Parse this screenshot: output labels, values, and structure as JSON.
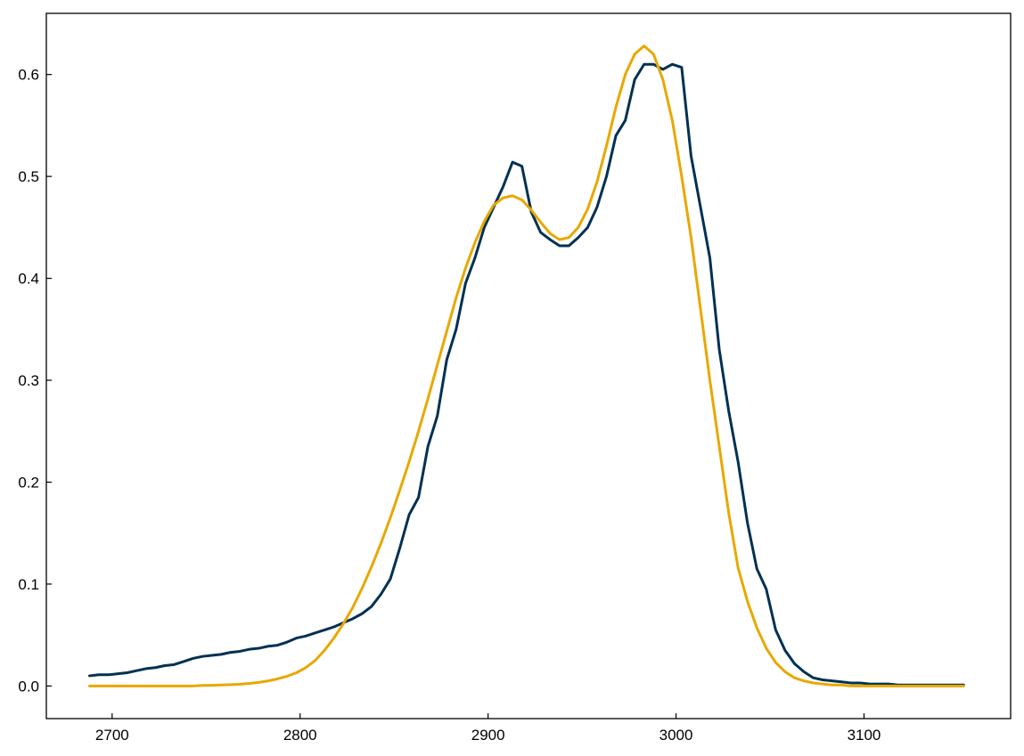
{
  "chart_data": {
    "type": "line",
    "title": "",
    "xlabel": "",
    "ylabel": "",
    "xlim": [
      2665,
      3178
    ],
    "ylim": [
      -0.032,
      0.66
    ],
    "x_ticks": [
      2700,
      2800,
      2900,
      3000,
      3100
    ],
    "x_tick_labels": [
      "2700",
      "2800",
      "2900",
      "3000",
      "3100"
    ],
    "y_ticks": [
      0.0,
      0.1,
      0.2,
      0.3,
      0.4,
      0.5,
      0.6
    ],
    "y_tick_labels": [
      "0.0",
      "0.1",
      "0.2",
      "0.3",
      "0.4",
      "0.5",
      "0.6"
    ],
    "grid": false,
    "legend": "none",
    "series": [
      {
        "color": "#003153",
        "x": [
          2688,
          2693,
          2698,
          2703,
          2708,
          2713,
          2718,
          2723,
          2728,
          2733,
          2738,
          2743,
          2748,
          2753,
          2758,
          2763,
          2768,
          2773,
          2778,
          2783,
          2788,
          2793,
          2798,
          2803,
          2808,
          2813,
          2818,
          2823,
          2828,
          2833,
          2838,
          2843,
          2848,
          2853,
          2858,
          2863,
          2868,
          2873,
          2878,
          2883,
          2888,
          2893,
          2898,
          2903,
          2908,
          2913,
          2918,
          2923,
          2928,
          2933,
          2938,
          2943,
          2948,
          2953,
          2958,
          2963,
          2968,
          2973,
          2978,
          2983,
          2988,
          2993,
          2998,
          3003,
          3008,
          3013,
          3018,
          3023,
          3028,
          3033,
          3038,
          3043,
          3048,
          3053,
          3058,
          3063,
          3068,
          3073,
          3078,
          3083,
          3088,
          3093,
          3098,
          3103,
          3108,
          3113,
          3118,
          3123,
          3128,
          3133,
          3138,
          3143,
          3148,
          3153
        ],
        "y": [
          0.01,
          0.011,
          0.011,
          0.012,
          0.013,
          0.015,
          0.017,
          0.018,
          0.02,
          0.021,
          0.024,
          0.027,
          0.029,
          0.03,
          0.031,
          0.033,
          0.034,
          0.036,
          0.037,
          0.039,
          0.04,
          0.043,
          0.047,
          0.049,
          0.052,
          0.055,
          0.058,
          0.062,
          0.066,
          0.071,
          0.078,
          0.09,
          0.105,
          0.135,
          0.168,
          0.185,
          0.235,
          0.265,
          0.32,
          0.35,
          0.395,
          0.42,
          0.45,
          0.47,
          0.49,
          0.514,
          0.51,
          0.465,
          0.445,
          0.438,
          0.432,
          0.432,
          0.44,
          0.45,
          0.47,
          0.5,
          0.54,
          0.555,
          0.595,
          0.61,
          0.61,
          0.605,
          0.61,
          0.607,
          0.52,
          0.47,
          0.42,
          0.33,
          0.27,
          0.22,
          0.16,
          0.115,
          0.095,
          0.055,
          0.035,
          0.022,
          0.014,
          0.008,
          0.006,
          0.005,
          0.004,
          0.003,
          0.003,
          0.002,
          0.002,
          0.002,
          0.001,
          0.001,
          0.001,
          0.001,
          0.001,
          0.001,
          0.001,
          0.001
        ]
      },
      {
        "color": "#E8A800",
        "x": [
          2688,
          2693,
          2698,
          2703,
          2708,
          2713,
          2718,
          2723,
          2728,
          2733,
          2738,
          2743,
          2748,
          2753,
          2758,
          2763,
          2768,
          2773,
          2778,
          2783,
          2788,
          2793,
          2798,
          2803,
          2808,
          2813,
          2818,
          2823,
          2828,
          2833,
          2838,
          2843,
          2848,
          2853,
          2858,
          2863,
          2868,
          2873,
          2878,
          2883,
          2888,
          2893,
          2898,
          2903,
          2908,
          2913,
          2918,
          2923,
          2928,
          2933,
          2938,
          2943,
          2948,
          2953,
          2958,
          2963,
          2968,
          2973,
          2978,
          2983,
          2988,
          2993,
          2998,
          3003,
          3008,
          3013,
          3018,
          3023,
          3028,
          3033,
          3038,
          3043,
          3048,
          3053,
          3058,
          3063,
          3068,
          3073,
          3078,
          3083,
          3088,
          3093,
          3098,
          3103,
          3108,
          3113,
          3118,
          3123,
          3128,
          3133,
          3138,
          3143,
          3148,
          3153
        ],
        "y": [
          0.0,
          0.0,
          0.0,
          0.0,
          0.0,
          0.0,
          0.0,
          0.0,
          0.0,
          0.0,
          0.0,
          0.0,
          0.0005,
          0.0007,
          0.001,
          0.0013,
          0.0018,
          0.0025,
          0.0035,
          0.005,
          0.007,
          0.0095,
          0.013,
          0.018,
          0.025,
          0.035,
          0.047,
          0.061,
          0.077,
          0.096,
          0.117,
          0.14,
          0.165,
          0.192,
          0.22,
          0.25,
          0.282,
          0.315,
          0.348,
          0.381,
          0.41,
          0.435,
          0.456,
          0.472,
          0.479,
          0.481,
          0.477,
          0.467,
          0.455,
          0.444,
          0.438,
          0.44,
          0.45,
          0.468,
          0.495,
          0.53,
          0.568,
          0.6,
          0.62,
          0.628,
          0.62,
          0.595,
          0.555,
          0.5,
          0.44,
          0.37,
          0.3,
          0.235,
          0.17,
          0.116,
          0.083,
          0.057,
          0.037,
          0.023,
          0.014,
          0.008,
          0.005,
          0.003,
          0.002,
          0.001,
          0.001,
          0.0,
          0.0,
          0.0,
          0.0,
          0.0,
          0.0,
          0.0,
          0.0,
          0.0,
          0.0,
          0.0,
          0.0,
          0.0
        ]
      }
    ]
  }
}
